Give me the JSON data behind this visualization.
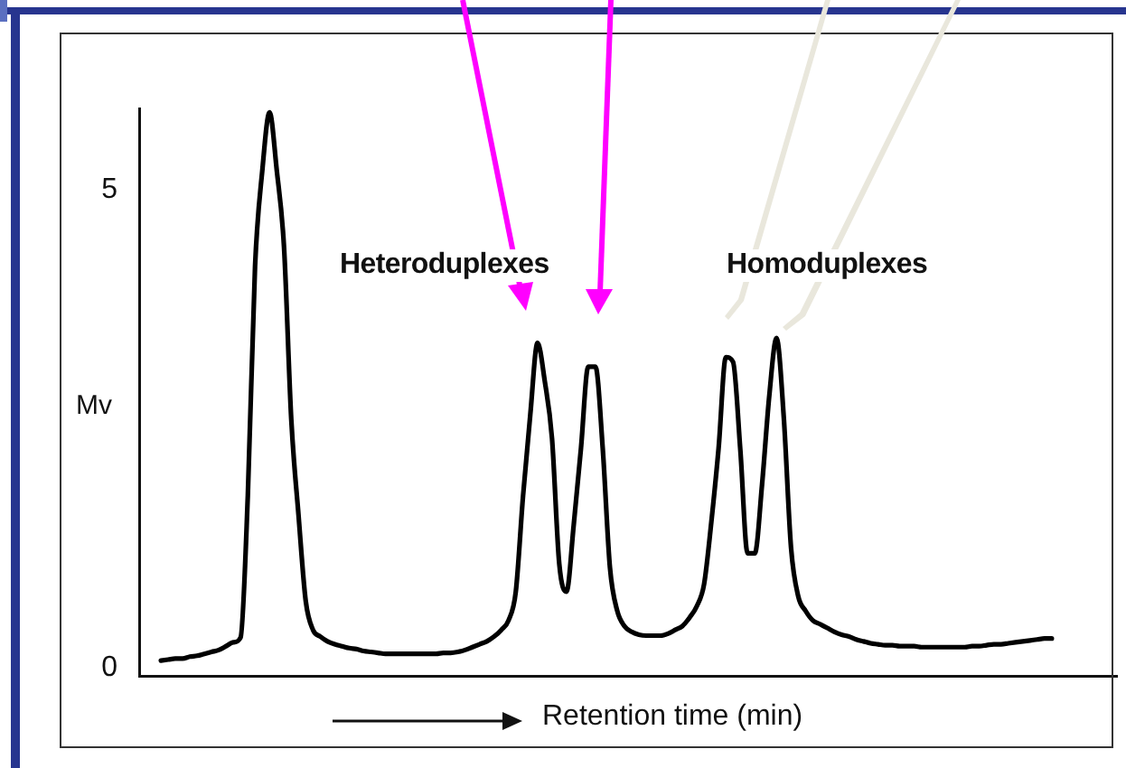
{
  "chart_data": {
    "type": "line",
    "xlabel": "Retention time (min)",
    "ylabel": "Mv",
    "annotations": [
      "Heteroduplexes",
      "Homoduplexes"
    ],
    "categories": [
      null,
      null,
      null,
      null,
      null,
      null,
      null,
      null,
      null,
      null,
      null,
      null,
      null,
      null,
      null,
      null,
      null,
      null,
      null,
      null,
      null,
      null,
      null,
      null,
      null,
      null,
      null,
      null,
      null,
      null,
      null,
      null,
      null,
      null,
      null,
      null,
      null,
      null,
      null,
      null,
      null,
      null,
      null,
      null,
      null,
      null,
      null,
      null,
      null,
      null,
      null,
      null,
      null,
      null,
      null,
      null,
      null,
      null,
      null,
      null,
      null,
      null,
      null,
      null,
      null,
      null,
      null,
      null,
      null,
      null,
      null,
      null,
      null,
      null,
      null,
      null,
      null,
      null,
      null,
      null,
      null,
      null,
      null,
      null,
      null,
      null,
      null,
      null,
      null,
      null,
      null,
      null,
      null,
      null,
      null,
      null,
      null,
      null,
      null,
      null,
      null,
      null,
      null,
      null,
      null,
      null,
      null,
      null,
      null,
      null,
      null,
      null,
      null,
      null,
      null,
      null,
      null,
      null,
      null,
      null,
      null,
      null,
      null,
      null,
      null,
      null,
      null,
      null,
      null,
      null,
      null,
      null,
      null,
      null,
      null,
      null
    ],
    "series": [
      {
        "color": "#000000",
        "values": [
          null,
          null,
          null,
          0.08,
          0.09,
          0.1,
          0.1,
          0.12,
          0.13,
          0.15,
          0.17,
          0.19,
          0.23,
          0.27,
          0.32,
          1.8,
          4.2,
          5.2,
          5.81,
          5.2,
          4.4,
          2.6,
          1.6,
          0.7,
          0.4,
          0.33,
          0.28,
          0.25,
          0.23,
          0.21,
          0.2,
          0.18,
          0.17,
          0.16,
          0.15,
          0.15,
          0.15,
          0.15,
          0.15,
          0.15,
          0.15,
          0.15,
          0.16,
          0.16,
          0.17,
          0.19,
          0.22,
          0.25,
          0.28,
          0.33,
          0.4,
          0.5,
          0.8,
          1.8,
          2.65,
          3.4,
          3.0,
          2.4,
          1.09,
          0.8,
          1.5,
          2.3,
          3.15,
          3.15,
          2.3,
          1.05,
          0.6,
          0.44,
          0.38,
          0.35,
          0.34,
          0.34,
          0.34,
          0.36,
          0.4,
          0.44,
          0.53,
          0.65,
          0.88,
          1.53,
          2.3,
          3.25,
          3.2,
          2.28,
          1.2,
          1.2,
          1.92,
          2.85,
          3.45,
          2.62,
          1.26,
          0.75,
          0.6,
          0.5,
          0.46,
          0.42,
          0.38,
          0.35,
          0.33,
          0.3,
          0.28,
          0.26,
          0.25,
          0.24,
          0.24,
          0.23,
          0.23,
          0.23,
          0.22,
          0.22,
          0.22,
          0.22,
          0.22,
          0.22,
          0.22,
          0.23,
          0.23,
          0.24,
          0.25,
          0.25,
          0.26,
          0.27,
          0.28,
          0.29,
          0.3,
          0.31,
          0.31,
          null,
          null,
          null,
          null,
          null,
          null,
          null,
          null,
          null
        ]
      }
    ],
    "ylim": [
      -0.08,
      5.85
    ],
    "yticks": [
      0,
      5
    ],
    "marker": "none",
    "tick_labels": "y"
  }
}
